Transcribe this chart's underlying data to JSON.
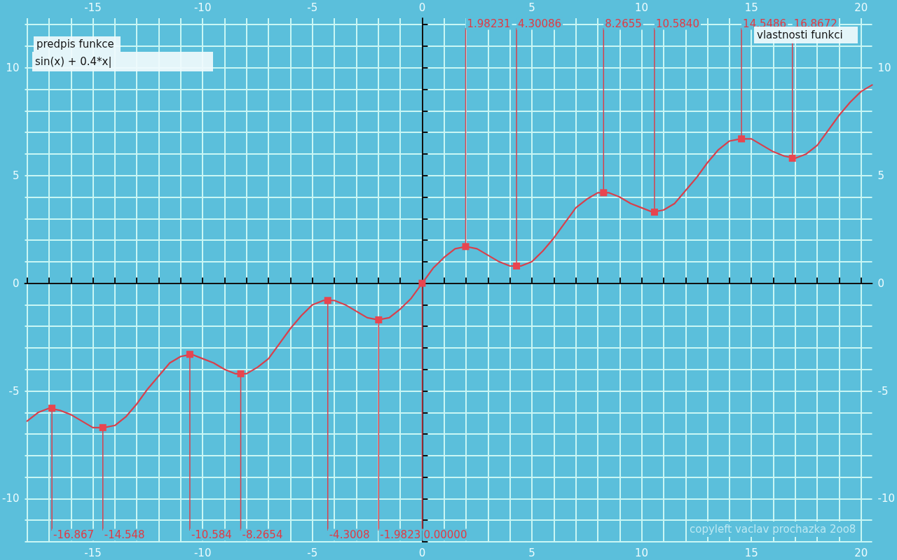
{
  "chart_data": {
    "type": "line",
    "xlim": [
      -18.1,
      20.5
    ],
    "ylim": [
      -12,
      12.3
    ],
    "x2lim": [
      -18.1,
      20.5
    ],
    "y2lim": [
      -12,
      12.3
    ],
    "xticks": [
      {
        "value": -18,
        "label": null
      },
      {
        "value": -17,
        "label": null
      },
      {
        "value": -16,
        "label": null
      },
      -15,
      {
        "value": -14,
        "label": null
      },
      {
        "value": -13,
        "label": null
      },
      {
        "value": -12,
        "label": null
      },
      {
        "value": -11,
        "label": null
      },
      -10,
      {
        "value": -9,
        "label": null
      },
      {
        "value": -8,
        "label": null
      },
      {
        "value": -7,
        "label": null
      },
      {
        "value": -6,
        "label": null
      },
      -5,
      {
        "value": -4,
        "label": null
      },
      {
        "value": -3,
        "label": null
      },
      {
        "value": -2,
        "label": null
      },
      {
        "value": -1,
        "label": null
      },
      0,
      {
        "value": 1,
        "label": null
      },
      {
        "value": 2,
        "label": null
      },
      {
        "value": 3,
        "label": null
      },
      {
        "value": 4,
        "label": null
      },
      5,
      {
        "value": 6,
        "label": null
      },
      {
        "value": 7,
        "label": null
      },
      {
        "value": 8,
        "label": null
      },
      {
        "value": 9,
        "label": null
      },
      10,
      {
        "value": 11,
        "label": null
      },
      {
        "value": 12,
        "label": null
      },
      {
        "value": 13,
        "label": null
      },
      {
        "value": 14,
        "label": null
      },
      15,
      {
        "value": 16,
        "label": null
      },
      {
        "value": 17,
        "label": null
      },
      {
        "value": 18,
        "label": null
      },
      {
        "value": 19,
        "label": null
      },
      20
    ],
    "x2ticks": [
      -15,
      -10,
      -5,
      0,
      5,
      10,
      15,
      20
    ],
    "yticks": [
      {
        "value": -12,
        "label": null
      },
      {
        "value": -11,
        "label": null
      },
      -10,
      {
        "value": -9,
        "label": null
      },
      {
        "value": -8,
        "label": null
      },
      {
        "value": -7,
        "label": null
      },
      {
        "value": -6,
        "label": null
      },
      -5,
      {
        "value": -4,
        "label": null
      },
      {
        "value": -3,
        "label": null
      },
      {
        "value": -2,
        "label": null
      },
      {
        "value": -1,
        "label": null
      },
      0,
      {
        "value": 1,
        "label": null
      },
      {
        "value": 2,
        "label": null
      },
      {
        "value": 3,
        "label": null
      },
      {
        "value": 4,
        "label": null
      },
      5,
      {
        "value": 6,
        "label": null
      },
      {
        "value": 7,
        "label": null
      },
      {
        "value": 8,
        "label": null
      },
      {
        "value": 9,
        "label": null
      },
      10,
      {
        "value": 11,
        "label": null
      },
      {
        "value": 12,
        "label": null
      }
    ],
    "y2ticks": [
      -10,
      -5,
      0,
      5,
      10
    ],
    "grid": true,
    "marker": "none",
    "line_style": "solid",
    "series": [
      {
        "color": "#d8404c",
        "x": [
          -18,
          -17.5,
          -17,
          -16.5,
          -16,
          -15.5,
          -15,
          -14.5,
          -14,
          -13.5,
          -13,
          -12.5,
          -12,
          -11.5,
          -11,
          -10.5,
          -10,
          -9.5,
          -9,
          -8.5,
          -8,
          -7.5,
          -7,
          -6.5,
          -6,
          -5.5,
          -5,
          -4.5,
          -4,
          -3.5,
          -3,
          -2.5,
          -2,
          -1.5,
          -1,
          -0.5,
          0,
          0.5,
          1,
          1.5,
          2,
          2.5,
          3,
          3.5,
          4,
          4.5,
          5,
          5.5,
          6,
          6.5,
          7,
          7.5,
          8,
          8.5,
          9,
          9.5,
          10,
          10.5,
          11,
          11.5,
          12,
          12.5,
          13,
          13.5,
          14,
          14.5,
          15,
          15.5,
          16,
          16.5,
          17,
          17.5,
          18,
          18.5,
          19,
          19.5,
          20,
          20.5
        ],
        "values": [
          -6.4,
          -6.0,
          -5.8,
          -5.9,
          -6.1,
          -6.4,
          -6.7,
          -6.7,
          -6.6,
          -6.2,
          -5.6,
          -4.9,
          -4.3,
          -3.7,
          -3.4,
          -3.3,
          -3.5,
          -3.7,
          -4.0,
          -4.2,
          -4.2,
          -3.9,
          -3.5,
          -2.8,
          -2.1,
          -1.5,
          -1.0,
          -0.8,
          -0.8,
          -1.0,
          -1.3,
          -1.6,
          -1.7,
          -1.6,
          -1.2,
          -0.7,
          0,
          0.7,
          1.2,
          1.6,
          1.7,
          1.6,
          1.3,
          1.0,
          0.8,
          0.8,
          1.0,
          1.5,
          2.1,
          2.8,
          3.5,
          3.9,
          4.2,
          4.2,
          4.0,
          3.7,
          3.5,
          3.3,
          3.4,
          3.7,
          4.3,
          4.9,
          5.6,
          6.2,
          6.6,
          6.7,
          6.7,
          6.4,
          6.1,
          5.9,
          5.8,
          6.0,
          6.4,
          7.1,
          7.8,
          8.4,
          8.9,
          9.2
        ]
      },
      {
        "type": "scatter",
        "color": "#e8454f",
        "marker": "square",
        "x": [
          -16.867,
          -14.548,
          -10.584,
          -8.2654,
          -4.3008,
          -1.9823,
          0,
          1.98231,
          4.30086,
          8.2655,
          10.584,
          14.5486,
          16.8672
        ],
        "values": [
          -5.8,
          -6.7,
          -3.3,
          -4.2,
          -0.8,
          -1.7,
          0,
          1.7,
          0.8,
          4.2,
          3.3,
          6.7,
          5.8
        ]
      }
    ],
    "annotations": [
      "predpis funkce",
      "sin(x)  +  0.4*x|",
      "vlastnosti funkci",
      "copyleft vaclav prochazka 2oo8",
      {
        "text": "-16.867",
        "x": -16.867,
        "y": -5.8
      },
      {
        "text": "-14.548",
        "x": -14.548,
        "y": -6.7
      },
      {
        "text": "-10.584",
        "x": -10.584,
        "y": -3.3
      },
      {
        "text": "-8.2654",
        "x": -8.2654,
        "y": -4.2
      },
      {
        "text": "-4.3008",
        "x": -4.3008,
        "y": -0.8
      },
      {
        "text": "-1.9823",
        "x": -1.9823,
        "y": -1.7
      },
      {
        "text": "0.00000",
        "x": 0,
        "y": 0
      },
      {
        "text": "1.98231",
        "x": 1.98231,
        "y": 1.7
      },
      {
        "text": "4.30086",
        "x": 4.30086,
        "y": 0.8
      },
      {
        "text": "8.2655",
        "x": 8.2655,
        "y": 4.2
      },
      {
        "text": "10.5840",
        "x": 10.584,
        "y": 3.3
      },
      {
        "text": "14.5486",
        "x": 14.5486,
        "y": 6.7
      },
      {
        "text": "16.8672",
        "x": 16.8672,
        "y": 5.8
      }
    ]
  }
}
